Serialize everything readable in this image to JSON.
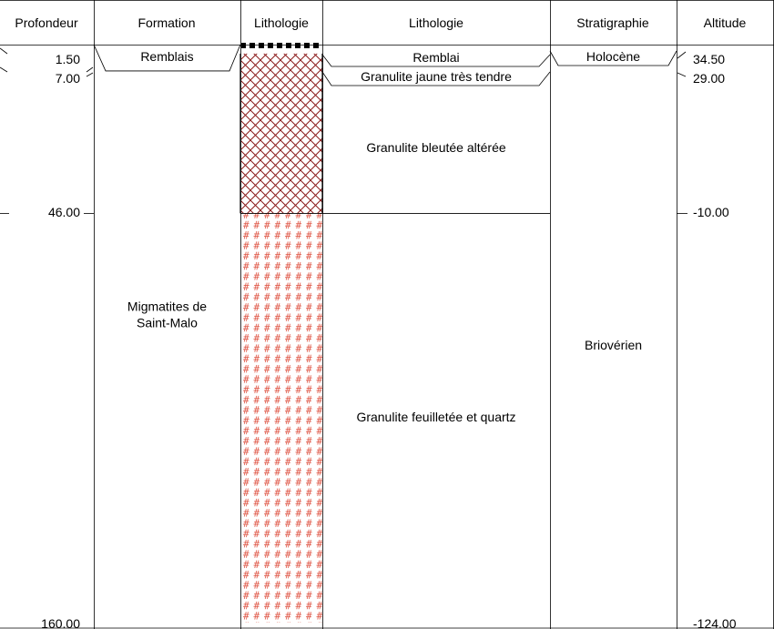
{
  "headers": {
    "depth": "Profondeur",
    "formation": "Formation",
    "lithology_pattern": "Lithologie",
    "lithology": "Lithologie",
    "stratigraphy": "Stratigraphie",
    "altitude": "Altitude"
  },
  "scale": {
    "depth_top": 0,
    "depth_bottom": 160
  },
  "depth_marks": [
    {
      "label": "1.50",
      "depth": 1.5
    },
    {
      "label": "7.00",
      "depth": 7.0
    },
    {
      "label": "46.00",
      "depth": 46.0
    },
    {
      "label": "160.00",
      "depth": 160.0
    }
  ],
  "altitude_marks": [
    {
      "label": "34.50",
      "depth": 1.5
    },
    {
      "label": "29.00",
      "depth": 7.0
    },
    {
      "label": "-10.00",
      "depth": 46.0
    },
    {
      "label": "-124.00",
      "depth": 160.0
    }
  ],
  "formations": [
    {
      "lines": [
        "Remblais"
      ],
      "top": 0,
      "bottom": 1.5
    },
    {
      "lines": [
        "Migmatites de",
        "Saint-Malo"
      ],
      "top": 1.5,
      "bottom": 160
    }
  ],
  "lithologies": [
    {
      "label": "Remblai",
      "top": 0,
      "bottom": 1.5,
      "pattern": "fill-blocks"
    },
    {
      "label": "Granulite jaune très tendre",
      "top": 1.5,
      "bottom": 7.0,
      "pattern": "crosshatch"
    },
    {
      "label": "Granulite bleutée altérée",
      "top": 7.0,
      "bottom": 46.0,
      "pattern": "crosshatch"
    },
    {
      "label": "Granulite feuilletée et quartz",
      "top": 46.0,
      "bottom": 160.0,
      "pattern": "hash"
    }
  ],
  "stratigraphy": [
    {
      "label": "Holocène",
      "top": 0,
      "bottom": 1.5
    },
    {
      "label": "Briovérien",
      "top": 1.5,
      "bottom": 160
    }
  ],
  "colors": {
    "crosshatch": "#8b1a1a",
    "hash": "#e05a4a",
    "grid": "#000000"
  }
}
